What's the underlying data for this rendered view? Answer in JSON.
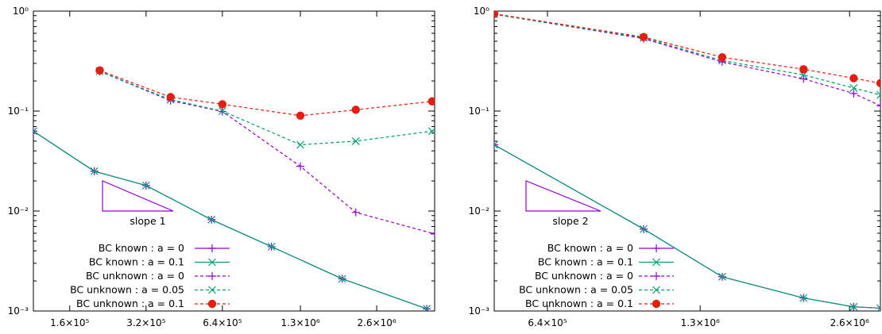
{
  "chart_data": [
    {
      "type": "line",
      "log_x": true,
      "log_y": true,
      "xlim": [
        115000,
        4400000
      ],
      "ylim": [
        0.001,
        1
      ],
      "x_ticks": [
        {
          "value": 160000,
          "label": "1.6×10⁵"
        },
        {
          "value": 320000,
          "label": "3.2×10⁵"
        },
        {
          "value": 640000,
          "label": "6.4×10⁵"
        },
        {
          "value": 1300000,
          "label": "1.3×10⁶"
        },
        {
          "value": 2600000,
          "label": "2.6×10⁶"
        }
      ],
      "y_ticks": [
        {
          "value": 0.001,
          "label": "10⁻³"
        },
        {
          "value": 0.01,
          "label": "10⁻²"
        },
        {
          "value": 0.1,
          "label": "10⁻¹"
        },
        {
          "value": 1,
          "label": "10⁰"
        }
      ],
      "annotation": {
        "text": "slope 1",
        "slope": 1
      },
      "legend_position": "bottom-left",
      "series": [
        {
          "name": "BC known : a = 0",
          "color": "#9400d3",
          "dash": false,
          "marker": "plus",
          "points": [
            [
              115000,
              0.063
            ],
            [
              200000,
              0.025
            ],
            [
              320000,
              0.018
            ],
            [
              580000,
              0.0082
            ],
            [
              1000000,
              0.0044
            ],
            [
              1900000,
              0.0021
            ],
            [
              4100000,
              0.00105
            ]
          ]
        },
        {
          "name": "BC known : a = 0.1",
          "color": "#009e73",
          "dash": false,
          "marker": "cross",
          "points": [
            [
              115000,
              0.063
            ],
            [
              200000,
              0.025
            ],
            [
              320000,
              0.018
            ],
            [
              580000,
              0.0082
            ],
            [
              1000000,
              0.0044
            ],
            [
              1900000,
              0.0021
            ],
            [
              4100000,
              0.00105
            ]
          ]
        },
        {
          "name": "BC unknown : a = 0",
          "color": "#9400d3",
          "dash": true,
          "marker": "plus",
          "points": [
            [
              210000,
              0.25
            ],
            [
              400000,
              0.127
            ],
            [
              640000,
              0.099
            ],
            [
              1300000,
              0.028
            ],
            [
              2150000,
              0.0097
            ],
            [
              4400000,
              0.0059
            ]
          ]
        },
        {
          "name": "BC unknown : a = 0.05",
          "color": "#009e73",
          "dash": true,
          "marker": "cross",
          "points": [
            [
              210000,
              0.25
            ],
            [
              400000,
              0.13
            ],
            [
              640000,
              0.1
            ],
            [
              1300000,
              0.046
            ],
            [
              2150000,
              0.05
            ],
            [
              4300000,
              0.063
            ]
          ]
        },
        {
          "name": "BC unknown : a = 0.1",
          "color": "#e51e10",
          "dash": true,
          "marker": "dot",
          "points": [
            [
              210000,
              0.255
            ],
            [
              400000,
              0.138
            ],
            [
              640000,
              0.117
            ],
            [
              1300000,
              0.09
            ],
            [
              2150000,
              0.103
            ],
            [
              4300000,
              0.125
            ]
          ]
        }
      ]
    },
    {
      "type": "line",
      "log_x": true,
      "log_y": true,
      "xlim": [
        500000,
        3000000
      ],
      "ylim": [
        0.001,
        1
      ],
      "x_ticks": [
        {
          "value": 640000,
          "label": "6.4×10⁵"
        },
        {
          "value": 1300000,
          "label": "1.3×10⁶"
        },
        {
          "value": 2600000,
          "label": "2.6×10⁶"
        }
      ],
      "y_ticks": [
        {
          "value": 0.001,
          "label": "10⁻³"
        },
        {
          "value": 0.01,
          "label": "10⁻²"
        },
        {
          "value": 0.1,
          "label": "10⁻¹"
        },
        {
          "value": 1,
          "label": "10⁰"
        }
      ],
      "annotation": {
        "text": "slope 2",
        "slope": 2
      },
      "legend_position": "bottom-left",
      "series": [
        {
          "name": "BC known : a = 0",
          "color": "#9400d3",
          "dash": false,
          "marker": "plus",
          "points": [
            [
              500000,
              0.046
            ],
            [
              1000000,
              0.0066
            ],
            [
              1440000,
              0.0022
            ],
            [
              2100000,
              0.00135
            ],
            [
              2650000,
              0.0011
            ],
            [
              3000000,
              0.00107
            ]
          ]
        },
        {
          "name": "BC known : a = 0.1",
          "color": "#009e73",
          "dash": false,
          "marker": "cross",
          "points": [
            [
              500000,
              0.046
            ],
            [
              1000000,
              0.0066
            ],
            [
              1440000,
              0.0022
            ],
            [
              2100000,
              0.00135
            ],
            [
              2650000,
              0.0011
            ],
            [
              3000000,
              0.00107
            ]
          ]
        },
        {
          "name": "BC unknown : a = 0",
          "color": "#9400d3",
          "dash": true,
          "marker": "plus",
          "points": [
            [
              500000,
              0.93
            ],
            [
              1000000,
              0.53
            ],
            [
              1440000,
              0.31
            ],
            [
              2100000,
              0.21
            ],
            [
              2650000,
              0.15
            ],
            [
              3000000,
              0.113
            ]
          ]
        },
        {
          "name": "BC unknown : a = 0.05",
          "color": "#009e73",
          "dash": true,
          "marker": "cross",
          "points": [
            [
              500000,
              0.93
            ],
            [
              1000000,
              0.54
            ],
            [
              1440000,
              0.32
            ],
            [
              2100000,
              0.23
            ],
            [
              2650000,
              0.17
            ],
            [
              3000000,
              0.145
            ]
          ]
        },
        {
          "name": "BC unknown : a = 0.1",
          "color": "#e51e10",
          "dash": true,
          "marker": "dot",
          "points": [
            [
              500000,
              0.94
            ],
            [
              1000000,
              0.55
            ],
            [
              1440000,
              0.345
            ],
            [
              2100000,
              0.262
            ],
            [
              2650000,
              0.213
            ],
            [
              3000000,
              0.19
            ]
          ]
        }
      ]
    }
  ]
}
